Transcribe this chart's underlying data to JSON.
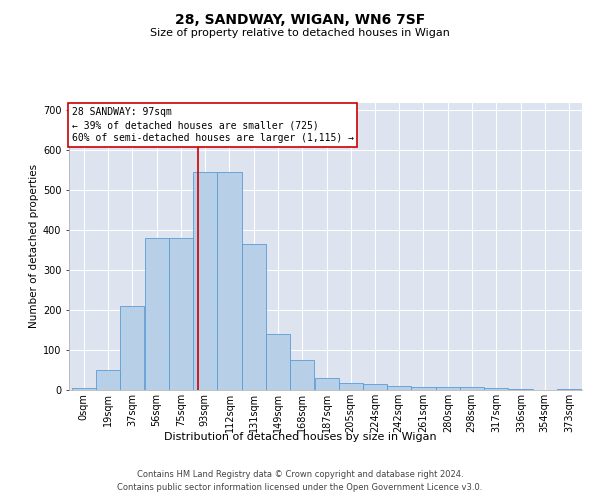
{
  "title": "28, SANDWAY, WIGAN, WN6 7SF",
  "subtitle": "Size of property relative to detached houses in Wigan",
  "xlabel": "Distribution of detached houses by size in Wigan",
  "ylabel": "Number of detached properties",
  "footer_line1": "Contains HM Land Registry data © Crown copyright and database right 2024.",
  "footer_line2": "Contains public sector information licensed under the Open Government Licence v3.0.",
  "bar_color": "#b8cfe8",
  "bar_edge_color": "#5b9bd5",
  "background_color": "#dde4f0",
  "grid_color": "#ffffff",
  "annotation_text": "28 SANDWAY: 97sqm\n← 39% of detached houses are smaller (725)\n60% of semi-detached houses are larger (1,115) →",
  "annotation_box_color": "#ffffff",
  "annotation_border_color": "#cc0000",
  "property_line_x": 97,
  "property_line_color": "#cc0000",
  "bin_labels": [
    "0sqm",
    "19sqm",
    "37sqm",
    "56sqm",
    "75sqm",
    "93sqm",
    "112sqm",
    "131sqm",
    "149sqm",
    "168sqm",
    "187sqm",
    "205sqm",
    "224sqm",
    "242sqm",
    "261sqm",
    "280sqm",
    "298sqm",
    "317sqm",
    "336sqm",
    "354sqm",
    "373sqm"
  ],
  "bin_starts": [
    0,
    19,
    37,
    56,
    75,
    93,
    112,
    131,
    149,
    168,
    187,
    205,
    224,
    242,
    261,
    280,
    298,
    317,
    336,
    354,
    373
  ],
  "bar_heights": [
    5,
    50,
    210,
    380,
    380,
    545,
    545,
    365,
    140,
    75,
    30,
    17,
    15,
    10,
    8,
    8,
    8,
    5,
    2,
    1,
    3
  ],
  "ylim": [
    0,
    720
  ],
  "yticks": [
    0,
    100,
    200,
    300,
    400,
    500,
    600,
    700
  ],
  "bin_width": 18.5,
  "title_fontsize": 10,
  "subtitle_fontsize": 8,
  "ylabel_fontsize": 7.5,
  "xlabel_fontsize": 8,
  "tick_fontsize": 7,
  "footer_fontsize": 6,
  "annotation_fontsize": 7
}
